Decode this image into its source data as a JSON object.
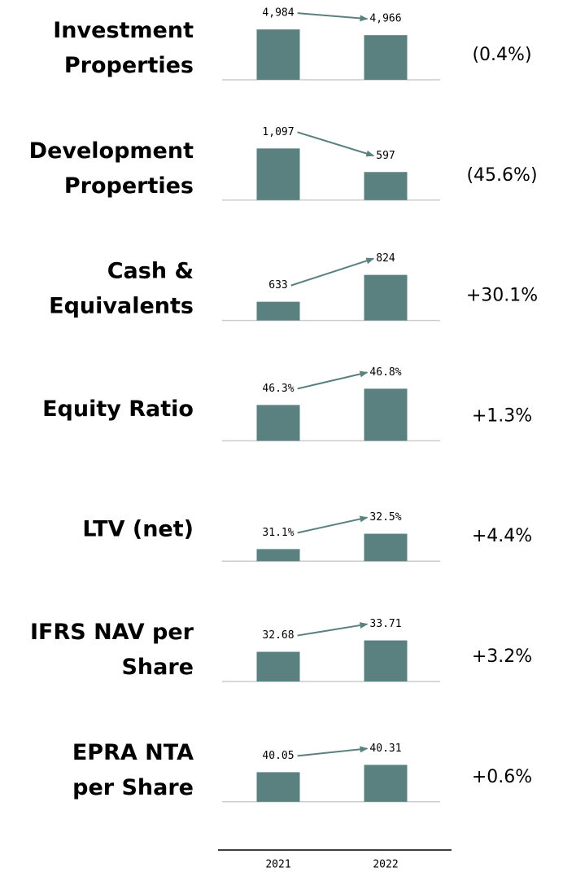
{
  "chart_data": [
    {
      "type": "bar",
      "title": [
        "Investment",
        "Properties"
      ],
      "values": [
        4984,
        4966
      ],
      "value_labels": [
        "4,984",
        "4,966"
      ],
      "ylim": [
        4825,
        5005
      ],
      "color": "#5b8080",
      "annotation": "(0.4%)"
    },
    {
      "type": "bar",
      "title": [
        "Development",
        "Properties"
      ],
      "values": [
        1097,
        597
      ],
      "value_labels": [
        "1,097",
        "597"
      ],
      "ylim": [
        0,
        1210
      ],
      "color": "#5b8080",
      "annotation": "(45.6%)"
    },
    {
      "type": "bar",
      "title": [
        "Cash &",
        "Equivalents"
      ],
      "values": [
        633,
        824
      ],
      "value_labels": [
        "633",
        "824"
      ],
      "ylim": [
        500,
        905
      ],
      "color": "#5b8080",
      "annotation": "+30.1%"
    },
    {
      "type": "bar",
      "title": [
        "Equity Ratio"
      ],
      "values": [
        46.3,
        46.8
      ],
      "value_labels": [
        "46.3%",
        "46.8%"
      ],
      "ylim": [
        45.2,
        46.95
      ],
      "color": "#5b8080",
      "annotation": "+1.3%"
    },
    {
      "type": "bar",
      "title": [
        "LTV (net)"
      ],
      "values": [
        31.1,
        32.5
      ],
      "value_labels": [
        "31.1%",
        "32.5%"
      ],
      "ylim": [
        30,
        35.2
      ],
      "color": "#5b8080",
      "annotation": "+4.4%"
    },
    {
      "type": "bar",
      "title": [
        "IFRS NAV per",
        "Share"
      ],
      "values": [
        32.68,
        33.71
      ],
      "value_labels": [
        "32.68",
        "33.71"
      ],
      "ylim": [
        30,
        35.15
      ],
      "color": "#5b8080",
      "annotation": "+3.2%"
    },
    {
      "type": "bar",
      "title": [
        "EPRA NTA",
        "per Share"
      ],
      "values": [
        40.05,
        40.31
      ],
      "value_labels": [
        "40.05",
        "40.31"
      ],
      "ylim": [
        39,
        41.02
      ],
      "color": "#5b8080",
      "annotation": "+0.6%",
      "categories": [
        "2021",
        "2022"
      ]
    }
  ]
}
